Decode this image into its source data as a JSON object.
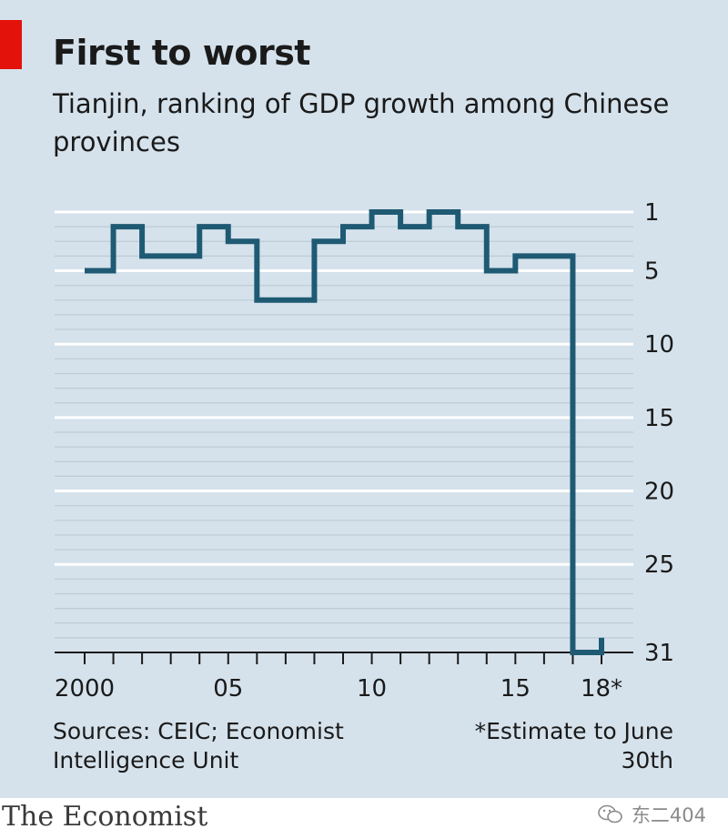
{
  "chart_data": {
    "type": "line",
    "step": true,
    "title": "First to worst",
    "subtitle": "Tianjin, ranking of GDP growth among Chinese provinces",
    "series": [
      {
        "name": "Tianjin GDP growth ranking",
        "color": "#1f5a73",
        "x": [
          2000,
          2001,
          2002,
          2003,
          2004,
          2005,
          2006,
          2007,
          2008,
          2009,
          2010,
          2011,
          2012,
          2013,
          2014,
          2015,
          2016,
          2017,
          2018
        ],
        "y": [
          5,
          2,
          4,
          4,
          2,
          3,
          7,
          7,
          3,
          2,
          1,
          2,
          1,
          2,
          5,
          4,
          4,
          31,
          30
        ]
      }
    ],
    "x_ticks": [
      2000,
      2005,
      2010,
      2015,
      2018
    ],
    "x_tick_labels": [
      "2000",
      "05",
      "10",
      "15",
      "18*"
    ],
    "y_ticks": [
      1,
      5,
      10,
      15,
      20,
      25,
      31
    ],
    "y_tick_labels": [
      "1",
      "5",
      "10",
      "15",
      "20",
      "25",
      "31"
    ],
    "ylim": [
      1,
      31
    ],
    "y_inverted": true,
    "xlim": [
      2000,
      2018
    ],
    "ylabel": "",
    "xlabel": "",
    "legend": "none",
    "grid": true
  },
  "sources": "Sources: CEIC; Economist Intelligence Unit",
  "footnote": "*Estimate to June 30th",
  "brand": "The Economist",
  "watermark": "东二404",
  "colors": {
    "background": "#d5e2ec",
    "line": "#1f5a73",
    "accent": "#e3120b",
    "grid": "#ffffff"
  }
}
